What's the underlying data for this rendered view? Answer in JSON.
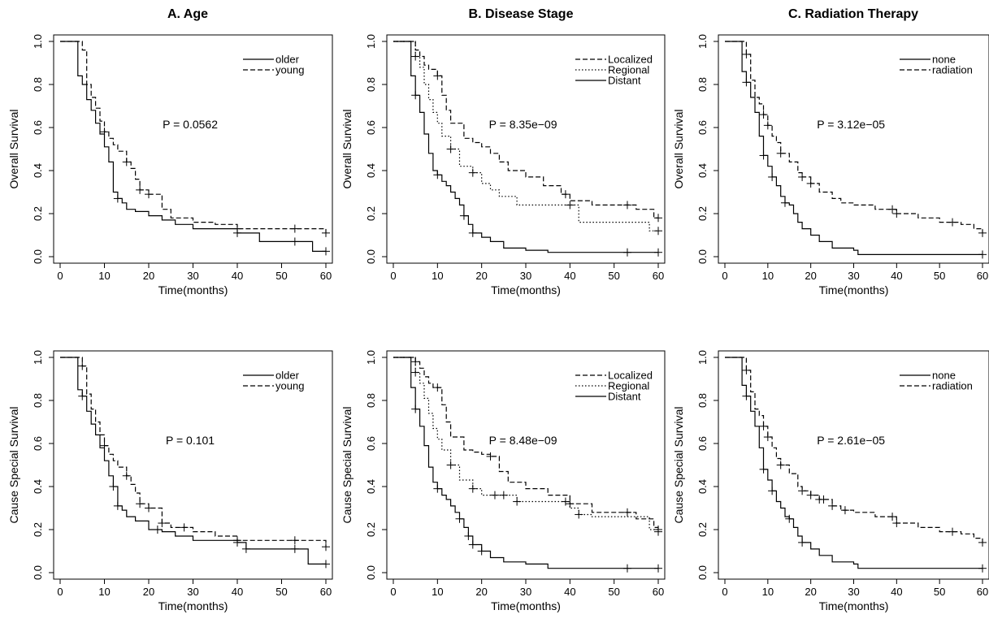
{
  "column_titles": [
    "A. Age",
    "B. Disease Stage",
    "C.  Radiation Therapy"
  ],
  "chart_data": [
    {
      "type": "line",
      "panel": "A-overall",
      "xlabel": "Time(months)",
      "ylabel": "Overall Survival",
      "xlim": [
        0,
        60
      ],
      "ylim": [
        0,
        1
      ],
      "xticks": [
        0,
        10,
        20,
        30,
        40,
        50,
        60
      ],
      "yticks": [
        0.0,
        0.2,
        0.4,
        0.6,
        0.8,
        1.0
      ],
      "annotation": "P = 0.0562",
      "legend_position": "top-right",
      "series": [
        {
          "name": "older",
          "dash": "solid",
          "x": [
            0,
            4,
            5,
            6,
            7,
            8,
            9,
            10,
            11,
            12,
            13,
            14,
            15,
            17,
            20,
            23,
            26,
            30,
            40,
            45,
            57,
            60
          ],
          "y": [
            1.0,
            0.84,
            0.8,
            0.73,
            0.68,
            0.62,
            0.57,
            0.51,
            0.44,
            0.3,
            0.27,
            0.25,
            0.22,
            0.21,
            0.19,
            0.17,
            0.15,
            0.13,
            0.11,
            0.07,
            0.025,
            0.025
          ],
          "censor_x": [
            13,
            40,
            53,
            60
          ]
        },
        {
          "name": "young",
          "dash": "dashed",
          "x": [
            0,
            5,
            6,
            7,
            8,
            9,
            10,
            11,
            12,
            13,
            15,
            16,
            17,
            18,
            20,
            23,
            25,
            30,
            35,
            40,
            60
          ],
          "y": [
            1.0,
            0.96,
            0.8,
            0.74,
            0.69,
            0.63,
            0.58,
            0.55,
            0.52,
            0.49,
            0.44,
            0.41,
            0.36,
            0.31,
            0.29,
            0.22,
            0.18,
            0.16,
            0.15,
            0.13,
            0.11
          ],
          "censor_x": [
            10,
            15,
            18,
            20,
            40,
            53,
            60
          ]
        }
      ]
    },
    {
      "type": "line",
      "panel": "B-overall",
      "xlabel": "Time(months)",
      "ylabel": "Overall Survival",
      "xlim": [
        0,
        60
      ],
      "ylim": [
        0,
        1
      ],
      "xticks": [
        0,
        10,
        20,
        30,
        40,
        50,
        60
      ],
      "yticks": [
        0.0,
        0.2,
        0.4,
        0.6,
        0.8,
        1.0
      ],
      "annotation": "P = 8.35e−09",
      "legend_position": "top-right",
      "series": [
        {
          "name": "Localized",
          "dash": "dashed",
          "x": [
            0,
            5,
            6,
            7,
            8,
            10,
            11,
            12,
            13,
            16,
            18,
            20,
            22,
            24,
            26,
            30,
            34,
            38,
            40,
            45,
            55,
            59,
            60
          ],
          "y": [
            1.0,
            0.96,
            0.93,
            0.89,
            0.87,
            0.84,
            0.75,
            0.68,
            0.62,
            0.55,
            0.53,
            0.51,
            0.48,
            0.44,
            0.4,
            0.37,
            0.33,
            0.29,
            0.26,
            0.24,
            0.22,
            0.18,
            0.18
          ],
          "censor_x": [
            10,
            39,
            53,
            60
          ]
        },
        {
          "name": "Regional",
          "dash": "dotted",
          "x": [
            0,
            5,
            6,
            7,
            8,
            9,
            10,
            11,
            13,
            15,
            18,
            20,
            22,
            24,
            28,
            30,
            35,
            40,
            42,
            45,
            58,
            60
          ],
          "y": [
            1.0,
            0.93,
            0.88,
            0.8,
            0.73,
            0.67,
            0.62,
            0.56,
            0.5,
            0.42,
            0.39,
            0.34,
            0.31,
            0.28,
            0.24,
            0.24,
            0.24,
            0.24,
            0.16,
            0.16,
            0.12,
            0.12
          ],
          "censor_x": [
            5,
            13,
            18,
            40,
            60
          ]
        },
        {
          "name": "Distant",
          "dash": "solid",
          "x": [
            0,
            4,
            5,
            6,
            7,
            8,
            9,
            10,
            11,
            12,
            13,
            14,
            15,
            16,
            17,
            18,
            20,
            22,
            25,
            30,
            35,
            60
          ],
          "y": [
            1.0,
            0.84,
            0.75,
            0.67,
            0.57,
            0.48,
            0.4,
            0.38,
            0.35,
            0.33,
            0.3,
            0.27,
            0.24,
            0.19,
            0.15,
            0.11,
            0.09,
            0.07,
            0.04,
            0.03,
            0.02,
            0.02
          ],
          "censor_x": [
            5,
            10,
            16,
            18,
            53,
            60
          ]
        }
      ]
    },
    {
      "type": "line",
      "panel": "C-overall",
      "xlabel": "Time(months)",
      "ylabel": "Overall Survival",
      "xlim": [
        0,
        60
      ],
      "ylim": [
        0,
        1
      ],
      "xticks": [
        0,
        10,
        20,
        30,
        40,
        50,
        60
      ],
      "yticks": [
        0.0,
        0.2,
        0.4,
        0.6,
        0.8,
        1.0
      ],
      "annotation": "P = 3.12e−05",
      "legend_position": "top-right",
      "series": [
        {
          "name": "none",
          "dash": "solid",
          "x": [
            0,
            4,
            5,
            6,
            7,
            8,
            9,
            10,
            11,
            12,
            13,
            14,
            15,
            16,
            17,
            18,
            20,
            22,
            25,
            30,
            31,
            60
          ],
          "y": [
            1.0,
            0.86,
            0.81,
            0.74,
            0.67,
            0.56,
            0.47,
            0.42,
            0.37,
            0.33,
            0.28,
            0.25,
            0.24,
            0.2,
            0.16,
            0.13,
            0.1,
            0.07,
            0.04,
            0.03,
            0.01,
            0.01
          ],
          "censor_x": [
            5,
            9,
            11,
            14,
            60
          ]
        },
        {
          "name": "radiation",
          "dash": "dashed",
          "x": [
            0,
            5,
            6,
            7,
            8,
            9,
            10,
            11,
            12,
            13,
            15,
            17,
            18,
            20,
            22,
            25,
            27,
            30,
            35,
            40,
            45,
            50,
            55,
            58,
            60
          ],
          "y": [
            1.0,
            0.94,
            0.82,
            0.74,
            0.71,
            0.66,
            0.61,
            0.56,
            0.53,
            0.48,
            0.44,
            0.39,
            0.37,
            0.34,
            0.3,
            0.27,
            0.25,
            0.24,
            0.22,
            0.2,
            0.18,
            0.16,
            0.15,
            0.13,
            0.11
          ],
          "censor_x": [
            5,
            9,
            10,
            13,
            18,
            20,
            39,
            40,
            53,
            60
          ]
        }
      ]
    },
    {
      "type": "line",
      "panel": "A-cause",
      "xlabel": "Time(months)",
      "ylabel": "Cause Special Survival",
      "xlim": [
        0,
        60
      ],
      "ylim": [
        0,
        1
      ],
      "xticks": [
        0,
        10,
        20,
        30,
        40,
        50,
        60
      ],
      "yticks": [
        0.0,
        0.2,
        0.4,
        0.6,
        0.8,
        1.0
      ],
      "annotation": "P = 0.101",
      "legend_position": "top-right",
      "series": [
        {
          "name": "older",
          "dash": "solid",
          "x": [
            0,
            4,
            5,
            6,
            7,
            8,
            9,
            10,
            11,
            12,
            13,
            14,
            15,
            17,
            20,
            23,
            26,
            30,
            40,
            42,
            56,
            60
          ],
          "y": [
            1.0,
            0.85,
            0.82,
            0.75,
            0.69,
            0.64,
            0.58,
            0.52,
            0.45,
            0.4,
            0.31,
            0.29,
            0.26,
            0.24,
            0.2,
            0.19,
            0.17,
            0.15,
            0.14,
            0.11,
            0.04,
            0.04
          ],
          "censor_x": [
            5,
            12,
            13,
            22,
            40,
            42,
            53,
            60
          ]
        },
        {
          "name": "young",
          "dash": "dashed",
          "x": [
            0,
            5,
            6,
            7,
            8,
            9,
            10,
            11,
            12,
            13,
            15,
            16,
            17,
            18,
            20,
            23,
            25,
            30,
            35,
            40,
            60
          ],
          "y": [
            1.0,
            0.96,
            0.83,
            0.76,
            0.7,
            0.64,
            0.59,
            0.55,
            0.52,
            0.49,
            0.45,
            0.41,
            0.37,
            0.32,
            0.3,
            0.23,
            0.21,
            0.19,
            0.17,
            0.15,
            0.12
          ],
          "censor_x": [
            5,
            10,
            15,
            18,
            20,
            23,
            28,
            40,
            53,
            60
          ]
        }
      ]
    },
    {
      "type": "line",
      "panel": "B-cause",
      "xlabel": "Time(months)",
      "ylabel": "Cause Special Survival",
      "xlim": [
        0,
        60
      ],
      "ylim": [
        0,
        1
      ],
      "xticks": [
        0,
        10,
        20,
        30,
        40,
        50,
        60
      ],
      "yticks": [
        0.0,
        0.2,
        0.4,
        0.6,
        0.8,
        1.0
      ],
      "annotation": "P = 8.48e−09",
      "legend_position": "top-right",
      "series": [
        {
          "name": "Localized",
          "dash": "dashed",
          "x": [
            0,
            5,
            6,
            7,
            8,
            9,
            10,
            11,
            12,
            13,
            16,
            18,
            20,
            22,
            24,
            26,
            30,
            35,
            40,
            45,
            55,
            59,
            60
          ],
          "y": [
            1.0,
            0.98,
            0.95,
            0.91,
            0.88,
            0.86,
            0.86,
            0.78,
            0.7,
            0.63,
            0.57,
            0.56,
            0.55,
            0.54,
            0.47,
            0.42,
            0.39,
            0.36,
            0.32,
            0.28,
            0.25,
            0.21,
            0.2
          ],
          "censor_x": [
            5,
            10,
            22,
            40,
            53,
            60
          ]
        },
        {
          "name": "Regional",
          "dash": "dotted",
          "x": [
            0,
            5,
            6,
            7,
            8,
            9,
            10,
            11,
            13,
            15,
            18,
            20,
            22,
            24,
            28,
            30,
            35,
            40,
            42,
            45,
            58,
            60
          ],
          "y": [
            1.0,
            0.93,
            0.88,
            0.81,
            0.74,
            0.67,
            0.62,
            0.57,
            0.5,
            0.43,
            0.39,
            0.36,
            0.36,
            0.36,
            0.33,
            0.33,
            0.33,
            0.3,
            0.27,
            0.26,
            0.2,
            0.19
          ],
          "censor_x": [
            5,
            13,
            18,
            23,
            25,
            28,
            39,
            42,
            60
          ]
        },
        {
          "name": "Distant",
          "dash": "solid",
          "x": [
            0,
            4,
            5,
            6,
            7,
            8,
            9,
            10,
            11,
            12,
            13,
            14,
            15,
            16,
            17,
            18,
            20,
            22,
            25,
            30,
            35,
            60
          ],
          "y": [
            1.0,
            0.86,
            0.76,
            0.68,
            0.59,
            0.49,
            0.42,
            0.39,
            0.36,
            0.34,
            0.31,
            0.28,
            0.25,
            0.21,
            0.17,
            0.13,
            0.1,
            0.07,
            0.05,
            0.04,
            0.02,
            0.02
          ],
          "censor_x": [
            5,
            10,
            15,
            17,
            18,
            20,
            53,
            60
          ]
        }
      ]
    },
    {
      "type": "line",
      "panel": "C-cause",
      "xlabel": "Time(months)",
      "ylabel": "Cause Special Survival",
      "xlim": [
        0,
        60
      ],
      "ylim": [
        0,
        1
      ],
      "xticks": [
        0,
        10,
        20,
        30,
        40,
        50,
        60
      ],
      "yticks": [
        0.0,
        0.2,
        0.4,
        0.6,
        0.8,
        1.0
      ],
      "annotation": "P = 2.61e−05",
      "legend_position": "top-right",
      "series": [
        {
          "name": "none",
          "dash": "solid",
          "x": [
            0,
            4,
            5,
            6,
            7,
            8,
            9,
            10,
            11,
            12,
            13,
            14,
            15,
            16,
            17,
            18,
            20,
            22,
            25,
            30,
            31,
            60
          ],
          "y": [
            1.0,
            0.87,
            0.82,
            0.75,
            0.68,
            0.58,
            0.48,
            0.43,
            0.38,
            0.33,
            0.3,
            0.26,
            0.25,
            0.21,
            0.17,
            0.14,
            0.11,
            0.08,
            0.05,
            0.04,
            0.02,
            0.02
          ],
          "censor_x": [
            5,
            9,
            11,
            15,
            18,
            60
          ]
        },
        {
          "name": "radiation",
          "dash": "dashed",
          "x": [
            0,
            5,
            6,
            7,
            8,
            9,
            10,
            11,
            12,
            13,
            15,
            17,
            18,
            20,
            22,
            25,
            27,
            30,
            35,
            40,
            45,
            50,
            55,
            58,
            60
          ],
          "y": [
            1.0,
            0.94,
            0.84,
            0.76,
            0.73,
            0.68,
            0.63,
            0.58,
            0.53,
            0.5,
            0.46,
            0.4,
            0.38,
            0.36,
            0.34,
            0.31,
            0.29,
            0.28,
            0.26,
            0.23,
            0.21,
            0.19,
            0.18,
            0.16,
            0.14
          ],
          "censor_x": [
            5,
            9,
            10,
            13,
            18,
            20,
            22,
            23,
            25,
            28,
            39,
            40,
            53,
            60
          ]
        }
      ]
    }
  ]
}
